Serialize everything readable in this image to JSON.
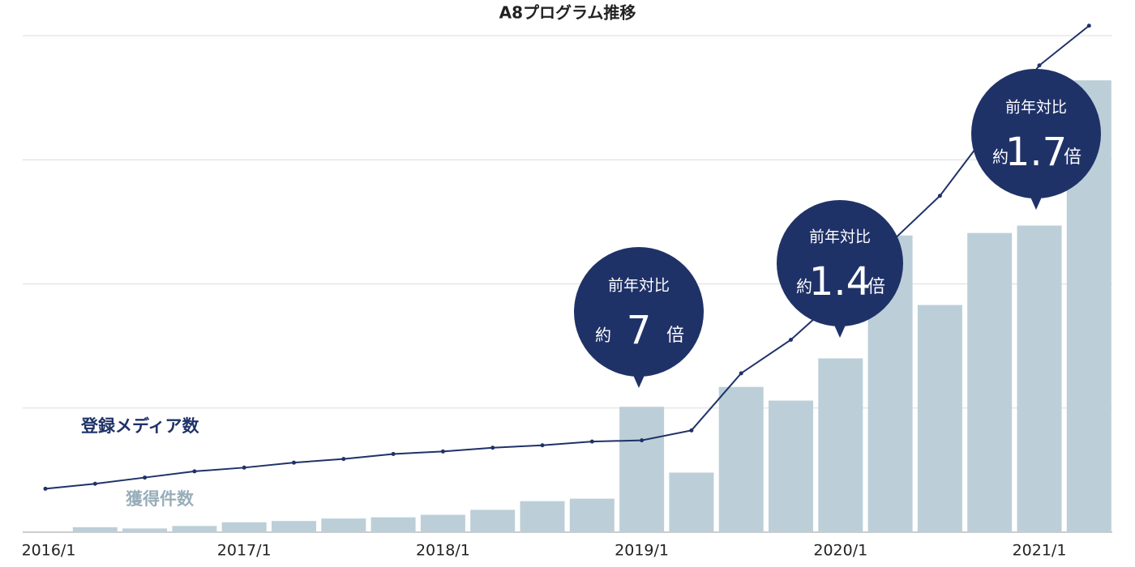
{
  "chart_data": {
    "type": "bar-line",
    "title": "A8プログラム推移",
    "categories": [
      "2016/1",
      null,
      null,
      null,
      "2017/1",
      null,
      null,
      null,
      "2018/1",
      null,
      null,
      null,
      "2019/1",
      null,
      null,
      null,
      "2020/1",
      null,
      null,
      null,
      "2021/1",
      null
    ],
    "series": [
      {
        "name": "獲得件数",
        "type": "bar",
        "color": "#bccfd8",
        "values": [
          null,
          0.04,
          0.03,
          0.05,
          0.08,
          0.09,
          0.11,
          0.12,
          0.14,
          0.18,
          0.25,
          0.27,
          1.01,
          0.48,
          1.17,
          1.06,
          1.4,
          2.39,
          1.83,
          2.41,
          2.47,
          3.64
        ]
      },
      {
        "name": "登録メディア数",
        "type": "line",
        "color": "#1f3268",
        "values": [
          0.35,
          0.39,
          0.44,
          0.49,
          0.52,
          0.56,
          0.59,
          0.63,
          0.65,
          0.68,
          0.7,
          0.73,
          0.74,
          0.82,
          1.28,
          1.55,
          1.91,
          2.33,
          2.71,
          3.24,
          3.76,
          4.08
        ]
      }
    ],
    "ylim": [
      0,
      4.2
    ],
    "yticks": [
      1,
      2,
      3,
      4
    ],
    "grid": true,
    "annotations": [
      {
        "text": "前年対比",
        "prefix": "約",
        "value": 7,
        "suffix": "倍"
      },
      {
        "text": "前年対比",
        "prefix": "約",
        "value": 1.4,
        "suffix": "倍"
      },
      {
        "text": "前年対比",
        "prefix": "約",
        "value": 1.7,
        "suffix": "倍"
      }
    ]
  }
}
